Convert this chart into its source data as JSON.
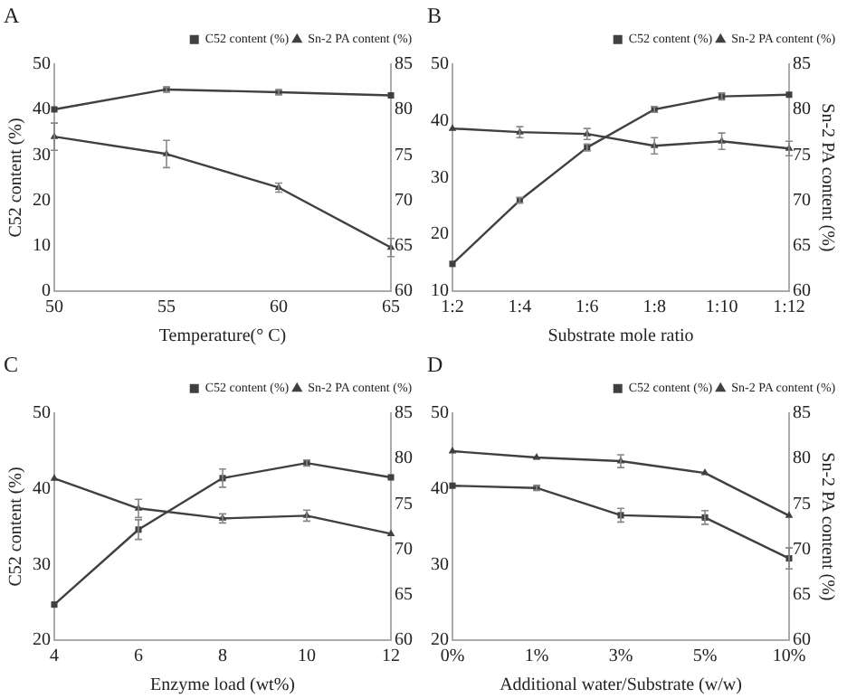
{
  "chart_data": [
    {
      "type": "line",
      "title": "A",
      "xlabel": "Temperature(° C)",
      "ylabel": "C52 content (%)",
      "categories": [
        "50",
        "55",
        "60",
        "65"
      ],
      "ylim": [
        0,
        50
      ],
      "yticks": [
        0,
        10,
        20,
        30,
        40,
        50
      ],
      "y2lim": [
        60,
        85
      ],
      "y2ticks": [
        60,
        65,
        70,
        75,
        80,
        85
      ],
      "legend": "top right",
      "grid": false,
      "series": [
        {
          "name": "C52 content (%)",
          "color": "#404040",
          "marker": "square",
          "values": [
            40,
            44.4,
            43.8,
            43.1
          ],
          "errors": [
            null,
            0.5,
            0.5,
            null
          ]
        },
        {
          "name": "Sn-2 PA content (%)",
          "color": "#404040",
          "marker": "triangle",
          "axis": "y2",
          "values": [
            77,
            75.1,
            71.4,
            64.8
          ],
          "errors": [
            1.5,
            1.5,
            0.5,
            1
          ]
        }
      ]
    },
    {
      "type": "line",
      "title": "B",
      "xlabel": "Substrate mole ratio",
      "y2label": "Sn-2 PA content (%)",
      "categories": [
        "1:2",
        "1:4",
        "1:6",
        "1:8",
        "1:10",
        "1:12"
      ],
      "ylim": [
        10,
        50
      ],
      "yticks": [
        10,
        20,
        30,
        40,
        50
      ],
      "y2lim": [
        60,
        85
      ],
      "y2ticks": [
        60,
        65,
        70,
        75,
        80,
        85
      ],
      "legend": "top right",
      "grid": false,
      "series": [
        {
          "name": "C52 content (%)",
          "color": "#404040",
          "marker": "square",
          "values": [
            14.8,
            26,
            35.3,
            42,
            44.3,
            44.6
          ],
          "errors": [
            null,
            0.5,
            0.6,
            0.5,
            0.6,
            null
          ]
        },
        {
          "name": "Sn-2 PA content (%)",
          "color": "#404040",
          "marker": "triangle",
          "axis": "y2",
          "values": [
            77.9,
            77.5,
            77.3,
            76,
            76.5,
            75.7
          ],
          "errors": [
            null,
            0.6,
            0.6,
            0.9,
            0.9,
            0.8
          ]
        }
      ]
    },
    {
      "type": "line",
      "title": "C",
      "xlabel": "Enzyme load (wt%)",
      "ylabel": "C52 content (%)",
      "categories": [
        "4",
        "6",
        "8",
        "10",
        "12"
      ],
      "ylim": [
        20,
        50
      ],
      "yticks": [
        20,
        30,
        40,
        50
      ],
      "y2lim": [
        60,
        85
      ],
      "y2ticks": [
        60,
        65,
        70,
        75,
        80,
        85
      ],
      "legend": "top right",
      "grid": false,
      "series": [
        {
          "name": "C52 content (%)",
          "color": "#404040",
          "marker": "square",
          "values": [
            24.7,
            34.6,
            41.4,
            43.4,
            41.5
          ],
          "errors": [
            null,
            1.3,
            1.2,
            0.4,
            null
          ]
        },
        {
          "name": "Sn-2 PA content (%)",
          "color": "#404040",
          "marker": "triangle",
          "axis": "y2",
          "values": [
            77.8,
            74.5,
            73.4,
            73.7,
            71.7
          ],
          "errors": [
            null,
            1,
            0.5,
            0.6,
            null
          ]
        }
      ]
    },
    {
      "type": "line",
      "title": "D",
      "xlabel": "Additional water/Substrate (w/w)",
      "y2label": "Sn-2 PA content (%)",
      "categories": [
        "0%",
        "1%",
        "3%",
        "5%",
        "10%"
      ],
      "ylim": [
        20,
        50
      ],
      "yticks": [
        20,
        30,
        40,
        50
      ],
      "y2lim": [
        60,
        85
      ],
      "y2ticks": [
        60,
        65,
        70,
        75,
        80,
        85
      ],
      "legend": "top right",
      "grid": false,
      "series": [
        {
          "name": "C52 content (%)",
          "color": "#404040",
          "marker": "square",
          "values": [
            40.4,
            40.1,
            36.5,
            36.2,
            30.8
          ],
          "errors": [
            null,
            0.3,
            0.9,
            0.9,
            1.4
          ]
        },
        {
          "name": "Sn-2 PA content (%)",
          "color": "#404040",
          "marker": "triangle",
          "axis": "y2",
          "values": [
            80.8,
            80.1,
            79.7,
            78.4,
            73.7
          ],
          "errors": [
            null,
            null,
            0.7,
            null,
            null
          ]
        }
      ]
    }
  ]
}
